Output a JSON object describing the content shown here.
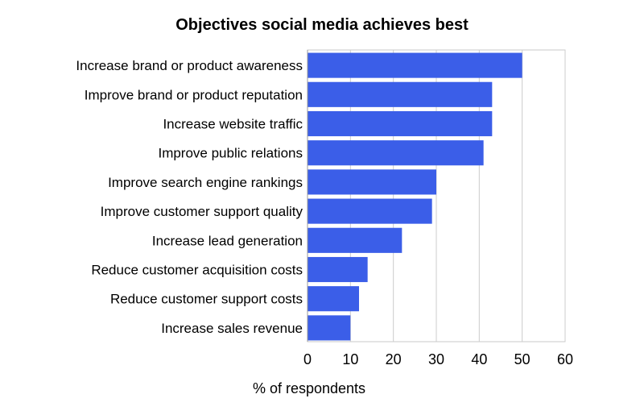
{
  "chart_data": {
    "type": "bar",
    "orientation": "horizontal",
    "title": "Objectives social media achieves best",
    "xlabel": "% of respondents",
    "ylabel": "",
    "categories": [
      "Increase brand or product awareness",
      "Improve brand or product reputation",
      "Increase website traffic",
      "Improve public relations",
      "Improve search engine rankings",
      "Improve customer support quality",
      "Increase lead generation",
      "Reduce customer acquisition costs",
      "Reduce customer support costs",
      "Increase sales revenue"
    ],
    "values": [
      50,
      43,
      43,
      41,
      30,
      29,
      22,
      14,
      12,
      10
    ],
    "xlim": [
      0,
      60
    ],
    "xticks": [
      "0",
      "10",
      "20",
      "30",
      "40",
      "50",
      "60"
    ],
    "grid": true,
    "legend": "none",
    "bar_color": "#3b5ee8"
  }
}
